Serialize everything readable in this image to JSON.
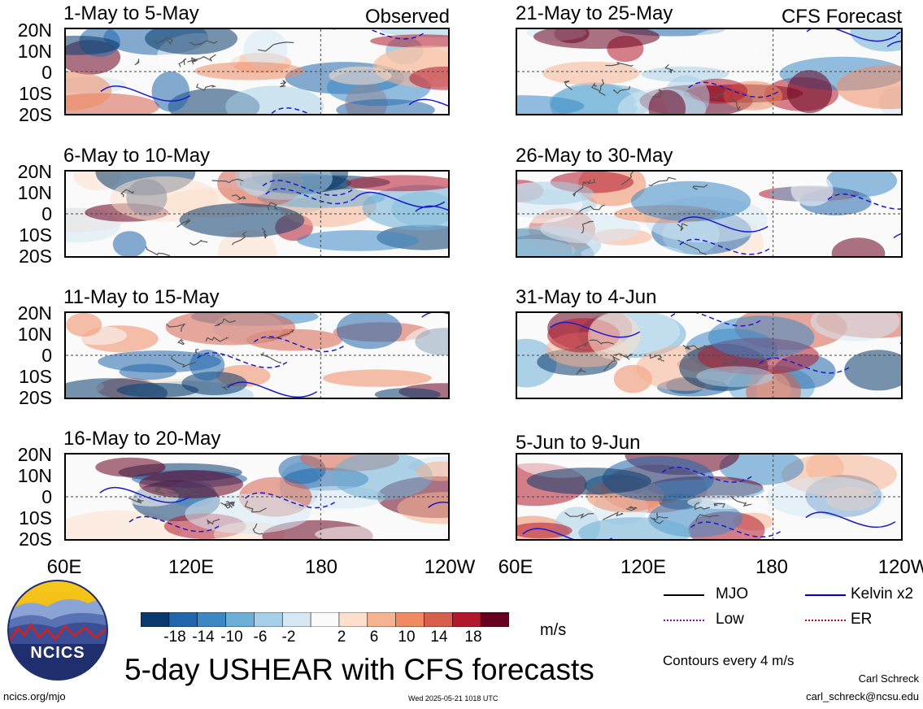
{
  "panels_left": [
    {
      "title": "1-May to 5-May",
      "label": "Observed"
    },
    {
      "title": "6-May to 10-May",
      "label": ""
    },
    {
      "title": "11-May to 15-May",
      "label": ""
    },
    {
      "title": "16-May to 20-May",
      "label": ""
    }
  ],
  "panels_right": [
    {
      "title": "21-May to 25-May",
      "label": "CFS Forecast"
    },
    {
      "title": "26-May to 30-May",
      "label": ""
    },
    {
      "title": "31-May to 4-Jun",
      "label": ""
    },
    {
      "title": "5-Jun to 9-Jun",
      "label": ""
    }
  ],
  "lat_labels": [
    "20N",
    "10N",
    "0",
    "10S",
    "20S"
  ],
  "lon_labels": [
    "60E",
    "120E",
    "180",
    "120W"
  ],
  "colorbar": {
    "labels": [
      "-18",
      "-14",
      "-10",
      "-6",
      "-2",
      "2",
      "6",
      "10",
      "14",
      "18"
    ],
    "colors": [
      "#0a3a6b",
      "#2166ac",
      "#3b88c4",
      "#6baed6",
      "#a8cfe8",
      "#d6e8f4",
      "#fbfbfb",
      "#fde0cc",
      "#f6b392",
      "#ef8a62",
      "#d6604d",
      "#b2182b",
      "#67001f"
    ],
    "unit": "m/s"
  },
  "legend": [
    {
      "label": "MJO",
      "color": "#000000"
    },
    {
      "label": "Kelvin x2",
      "color": "#0000cc"
    },
    {
      "label": "Low",
      "color": "#9900cc"
    },
    {
      "label": "ER",
      "color": "#cc0000"
    }
  ],
  "contour_note": "Contours every 4 m/s",
  "title": "5-day USHEAR with CFS forecasts",
  "logo_text": "NCICS",
  "author": "Carl Schreck",
  "email": "carl_schreck@ncsu.edu",
  "website": "ncics.org/mjo",
  "timestamp": "Wed 2025-05-21 1018 UTC"
}
